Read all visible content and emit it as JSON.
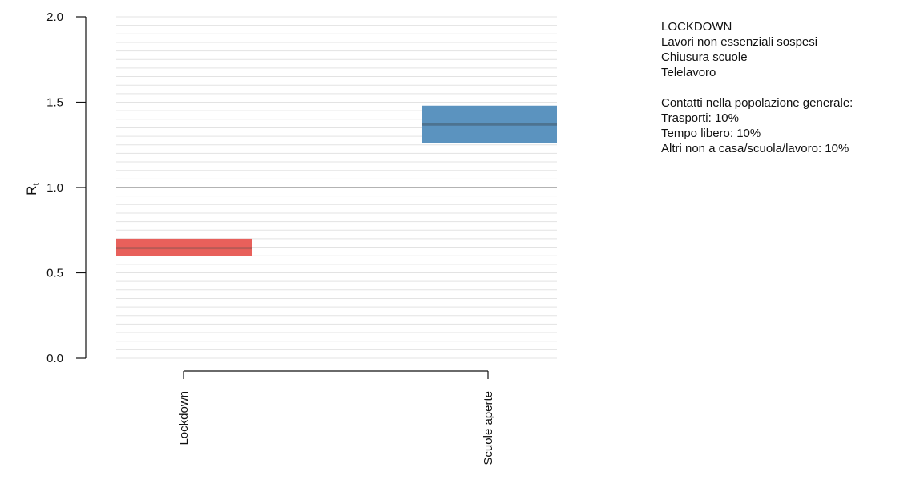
{
  "chart_data": {
    "type": "bar",
    "ylabel": "R",
    "ylabel_sub": "t",
    "ylim": [
      0,
      2
    ],
    "yticks": [
      "0.0",
      "0.5",
      "1.0",
      "1.5",
      "2.0"
    ],
    "grid": true,
    "reference_line": 1.0,
    "categories": [
      "Lockdown",
      "Scuole aperte"
    ],
    "series": [
      {
        "category": "Lockdown",
        "low": 0.6,
        "high": 0.7,
        "median": 0.645,
        "color": "#e8605b"
      },
      {
        "category": "Scuole aperte",
        "low": 1.26,
        "high": 1.48,
        "median": 1.37,
        "color": "#5b93bf"
      }
    ]
  },
  "annotation": {
    "scenario": [
      "LOCKDOWN",
      "Lavori non essenziali sospesi",
      "Chiusura scuole",
      "Telelavoro"
    ],
    "contacts": [
      "Contatti nella popolazione generale:",
      "Trasporti: 10%",
      "Tempo libero: 10%",
      "Altri non a casa/scuola/lavoro: 10%"
    ]
  }
}
